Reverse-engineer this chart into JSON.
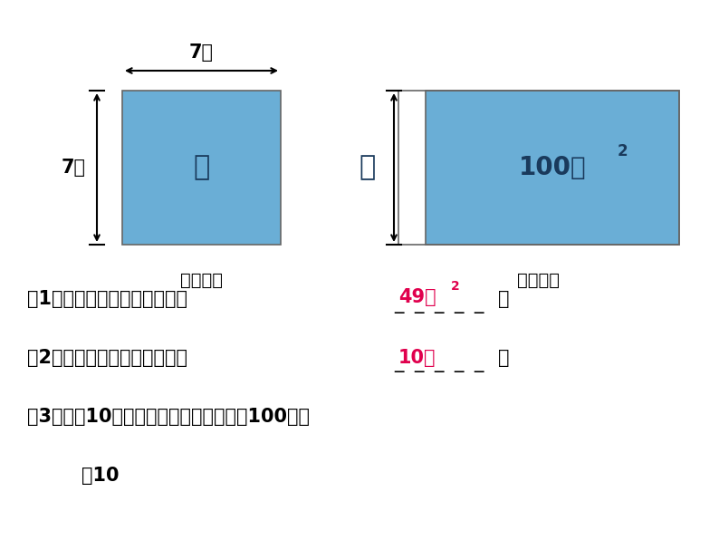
{
  "bg_color": "#ffffff",
  "fill_color": "#6aaed6",
  "answer_color": "#e0004d",
  "text_color": "#000000",
  "dark_text": "#1a3a5c",
  "fig1_caption": "（图一）",
  "fig2_caption": "（图二）",
  "q1_text": "（1）图一的正方形的面积为＿",
  "q1_answer_main": "49米",
  "q1_answer_sup": "2",
  "q1_blanks": "＿＿＿＿＿",
  "q1_end": "；",
  "q2_text": "（2）图二的正方形的边长为＿",
  "q2_answer": "10米",
  "q2_blanks": "＿＿＿＿＿",
  "q2_end": "；",
  "q3_text": "（3）除了10以外还有什么数的平方也是100吗？",
  "q3_answer": "－10",
  "label_7m_top": "7米",
  "label_7m_left": "7米",
  "label_100": "100米",
  "label_100_sup": "2",
  "label_q1": "？",
  "label_q2": "？"
}
